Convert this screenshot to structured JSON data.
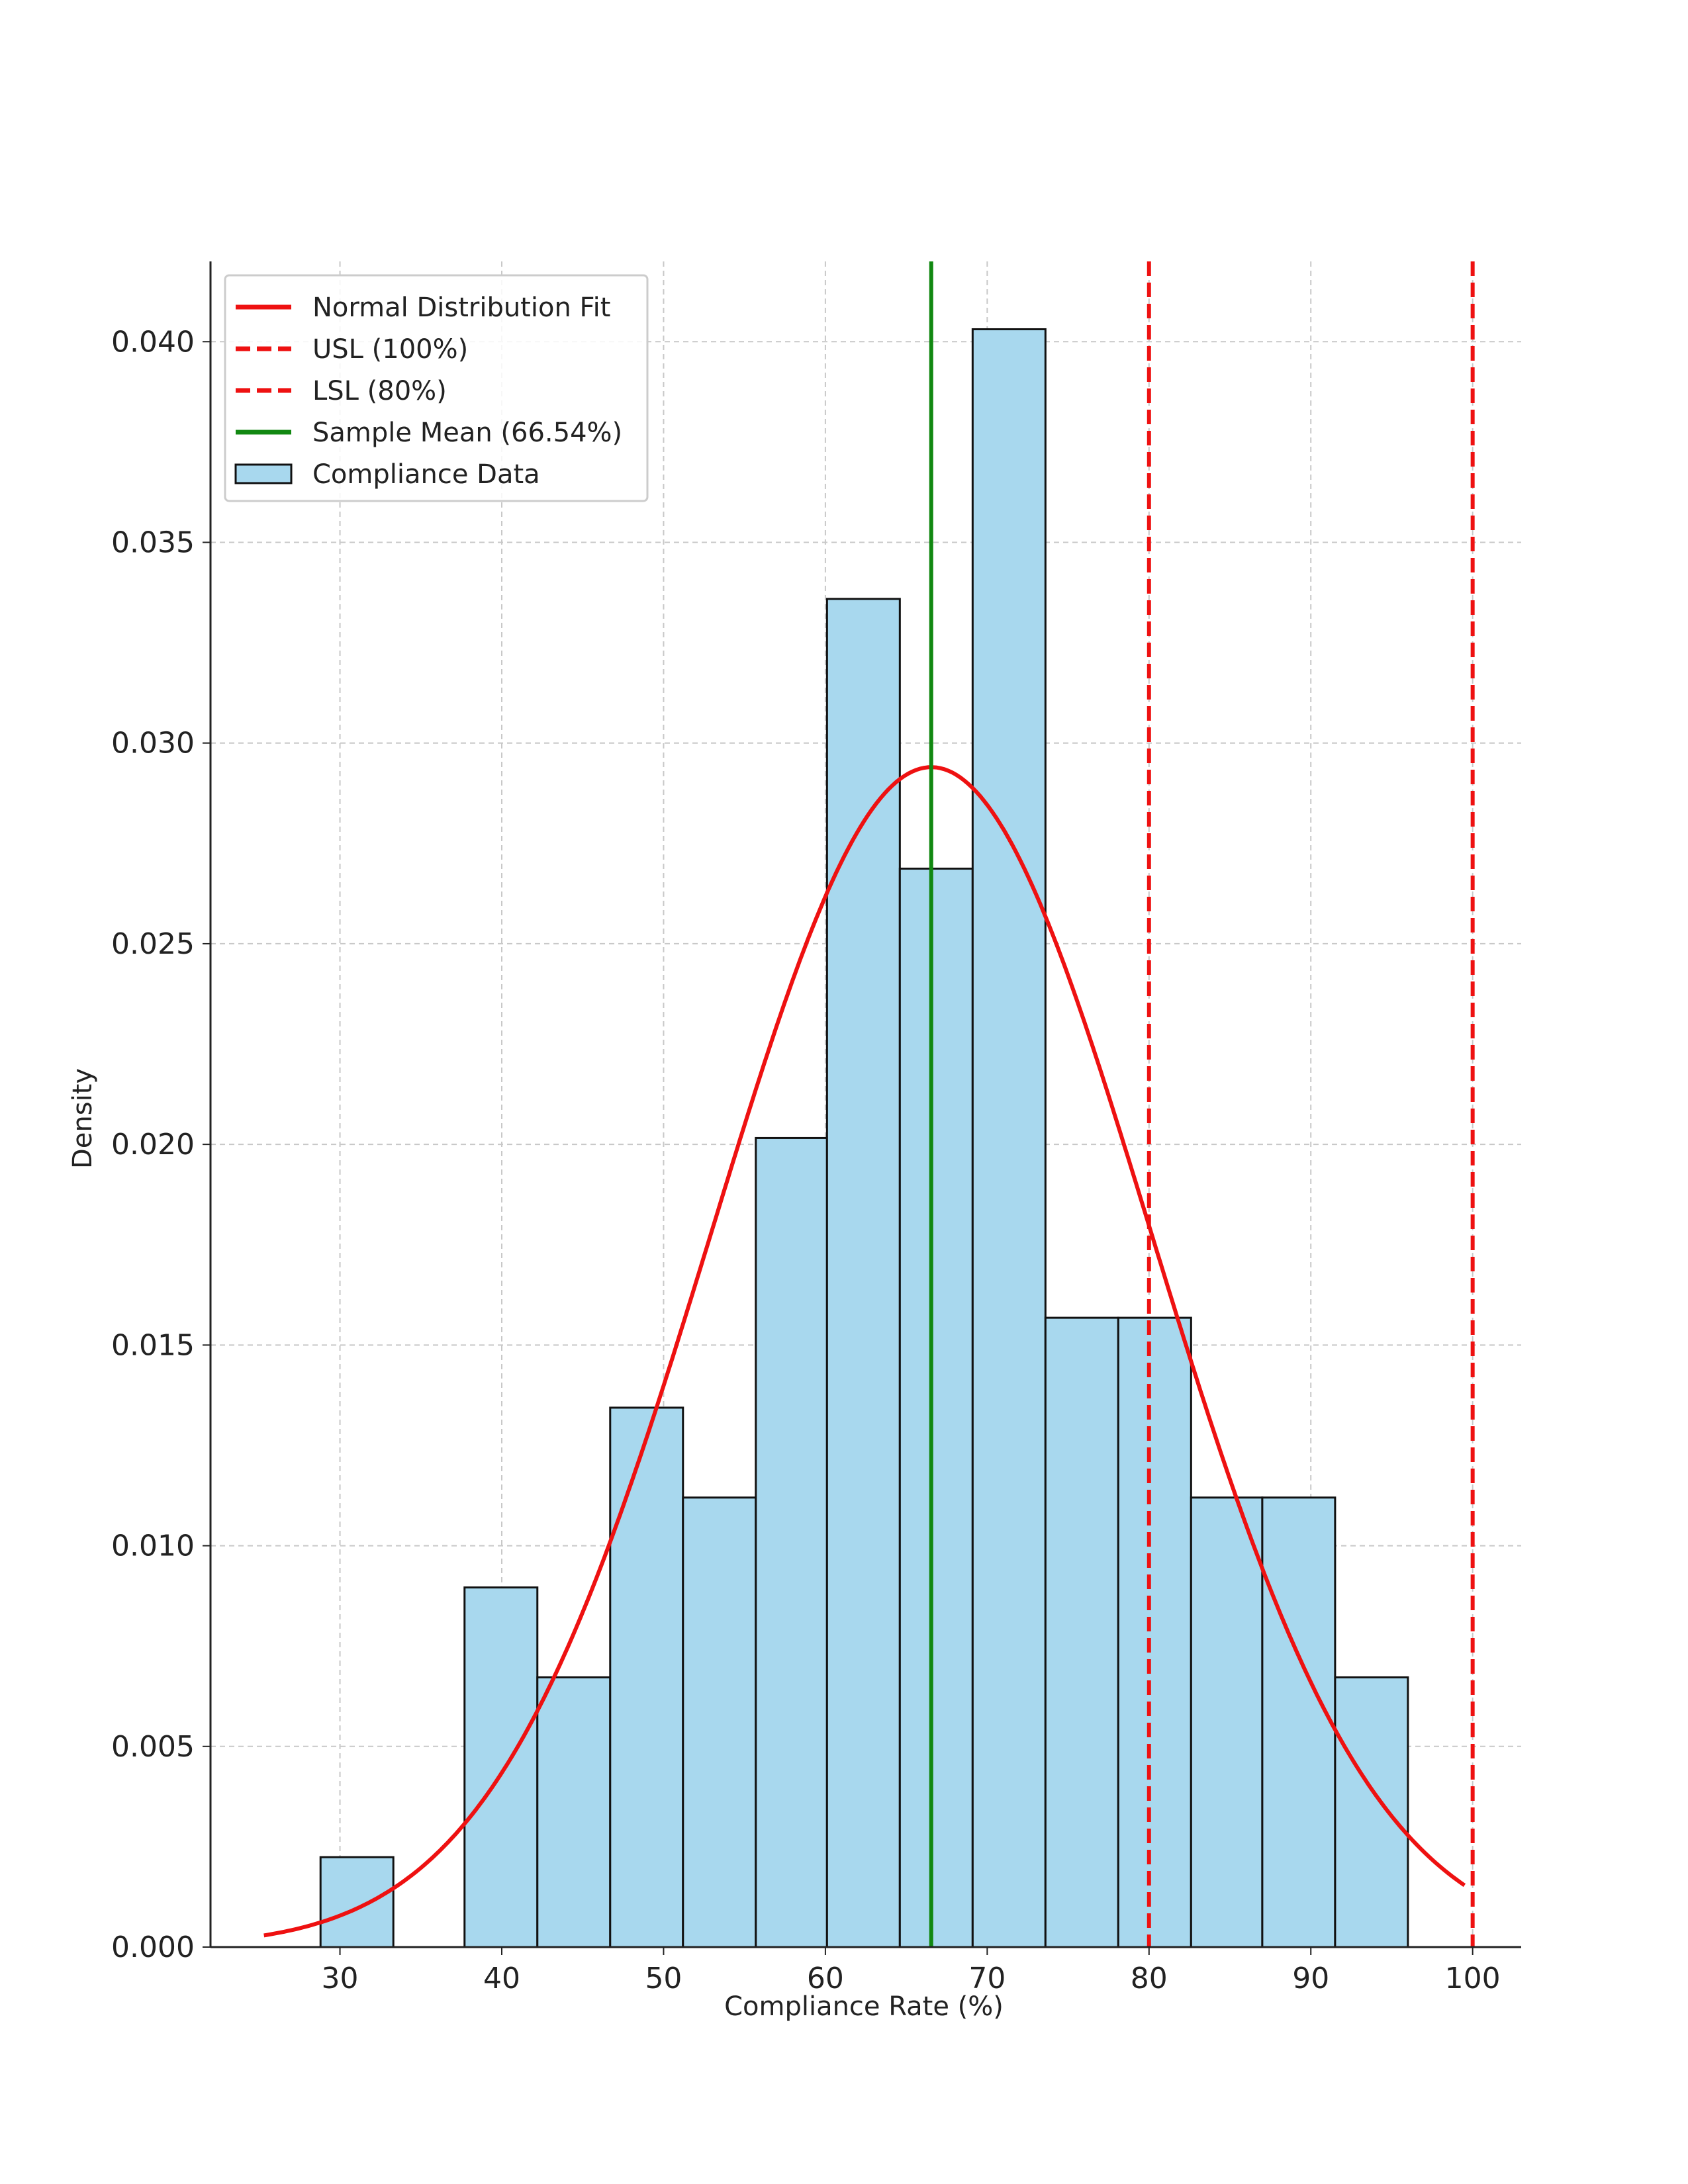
{
  "chart_data": {
    "type": "bar",
    "title": "",
    "xlabel": "Compliance Rate (%)",
    "ylabel": "Density",
    "xlim": [
      22.0,
      103.0
    ],
    "ylim": [
      0.0,
      0.042
    ],
    "grid": true,
    "legend_position": "top-left",
    "x_ticks": [
      "30",
      "40",
      "50",
      "60",
      "70",
      "80",
      "90",
      "100"
    ],
    "y_ticks": [
      "0.000",
      "0.005",
      "0.010",
      "0.015",
      "0.020",
      "0.025",
      "0.030",
      "0.035",
      "0.040"
    ],
    "histogram": {
      "name": "Compliance Data",
      "color": "#a8d8ee",
      "edge_color": "#111111",
      "bins": [
        {
          "x0": 28.8,
          "x1": 33.3,
          "density": 0.00224
        },
        {
          "x0": 37.7,
          "x1": 42.2,
          "density": 0.00896
        },
        {
          "x0": 42.2,
          "x1": 46.7,
          "density": 0.00672
        },
        {
          "x0": 46.7,
          "x1": 51.2,
          "density": 0.01344
        },
        {
          "x0": 51.2,
          "x1": 55.7,
          "density": 0.0112
        },
        {
          "x0": 55.7,
          "x1": 60.1,
          "density": 0.02016
        },
        {
          "x0": 60.1,
          "x1": 64.6,
          "density": 0.03359
        },
        {
          "x0": 64.6,
          "x1": 69.1,
          "density": 0.02687
        },
        {
          "x0": 69.1,
          "x1": 73.6,
          "density": 0.04031
        },
        {
          "x0": 73.6,
          "x1": 78.1,
          "density": 0.01568
        },
        {
          "x0": 78.1,
          "x1": 82.6,
          "density": 0.01568
        },
        {
          "x0": 82.6,
          "x1": 87.0,
          "density": 0.0112
        },
        {
          "x0": 87.0,
          "x1": 91.5,
          "density": 0.0112
        },
        {
          "x0": 91.5,
          "x1": 96.0,
          "density": 0.00672
        }
      ]
    },
    "normal_fit": {
      "name": "Normal Distribution Fit",
      "color": "#ee1111",
      "mean": 66.54,
      "std": 13.57,
      "x_range": [
        25.3,
        99.5
      ]
    },
    "reference_lines": [
      {
        "name": "USL (100%)",
        "x": 100,
        "color": "#ee1111",
        "style": "dashed"
      },
      {
        "name": "LSL (80%)",
        "x": 80,
        "color": "#ee1111",
        "style": "dashed"
      },
      {
        "name": "Sample Mean (66.54%)",
        "x": 66.54,
        "color": "#118811",
        "style": "solid"
      }
    ],
    "legend": [
      {
        "label": "Normal Distribution Fit",
        "kind": "line-solid",
        "color": "#ee1111"
      },
      {
        "label": "USL (100%)",
        "kind": "line-dashed",
        "color": "#ee1111"
      },
      {
        "label": "LSL (80%)",
        "kind": "line-dashed",
        "color": "#ee1111"
      },
      {
        "label": "Sample Mean (66.54%)",
        "kind": "line-solid",
        "color": "#118811"
      },
      {
        "label": "Compliance Data",
        "kind": "patch",
        "color": "#a8d8ee"
      }
    ]
  }
}
